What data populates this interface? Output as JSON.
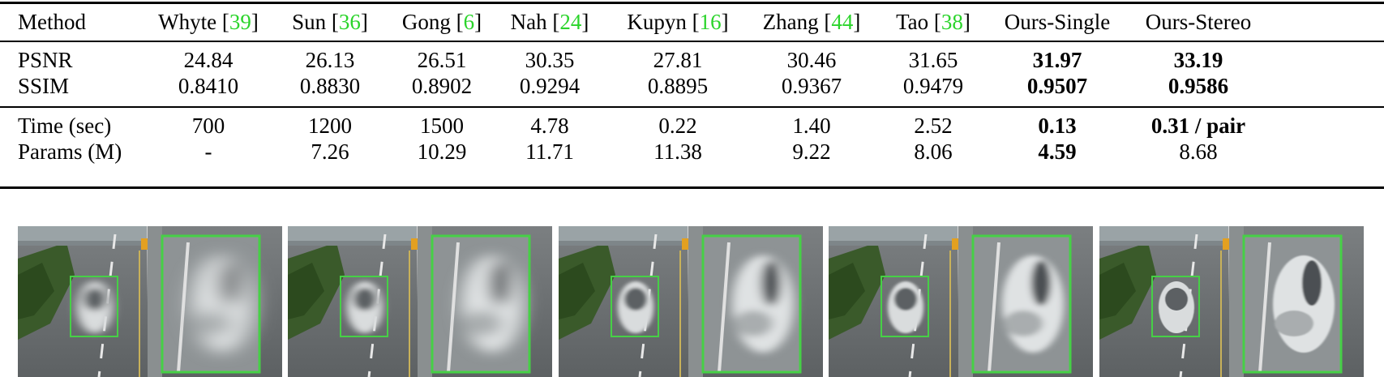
{
  "table": {
    "header": {
      "label": "Method",
      "columns": [
        {
          "name": "Whyte",
          "ref": "39"
        },
        {
          "name": "Sun",
          "ref": "36"
        },
        {
          "name": "Gong",
          "ref": "6"
        },
        {
          "name": "Nah",
          "ref": "24"
        },
        {
          "name": "Kupyn",
          "ref": "16"
        },
        {
          "name": "Zhang",
          "ref": "44"
        },
        {
          "name": "Tao",
          "ref": "38"
        },
        {
          "name": "Ours-Single",
          "ref": ""
        },
        {
          "name": "Ours-Stereo",
          "ref": ""
        }
      ]
    },
    "rows": [
      {
        "label": "PSNR",
        "values": [
          "24.84",
          "26.13",
          "26.51",
          "30.35",
          "27.81",
          "30.46",
          "31.65",
          "31.97",
          "33.19"
        ],
        "bold": [
          false,
          false,
          false,
          false,
          false,
          false,
          false,
          true,
          true
        ]
      },
      {
        "label": "SSIM",
        "values": [
          "0.8410",
          "0.8830",
          "0.8902",
          "0.9294",
          "0.8895",
          "0.9367",
          "0.9479",
          "0.9507",
          "0.9586"
        ],
        "bold": [
          false,
          false,
          false,
          false,
          false,
          false,
          false,
          true,
          true
        ]
      },
      {
        "label": "Time (sec)",
        "values": [
          "700",
          "1200",
          "1500",
          "4.78",
          "0.22",
          "1.40",
          "2.52",
          "0.13",
          "0.31 / pair"
        ],
        "bold": [
          false,
          false,
          false,
          false,
          false,
          false,
          false,
          true,
          true
        ]
      },
      {
        "label": "Params (M)",
        "values": [
          "-",
          "7.26",
          "10.29",
          "11.71",
          "11.38",
          "9.22",
          "8.06",
          "4.59",
          "8.68"
        ],
        "bold": [
          false,
          false,
          false,
          false,
          false,
          false,
          false,
          true,
          false
        ]
      }
    ]
  },
  "figure": {
    "panels": [
      {
        "blur": 6
      },
      {
        "blur": 5
      },
      {
        "blur": 3
      },
      {
        "blur": 2
      },
      {
        "blur": 0.6
      }
    ]
  }
}
